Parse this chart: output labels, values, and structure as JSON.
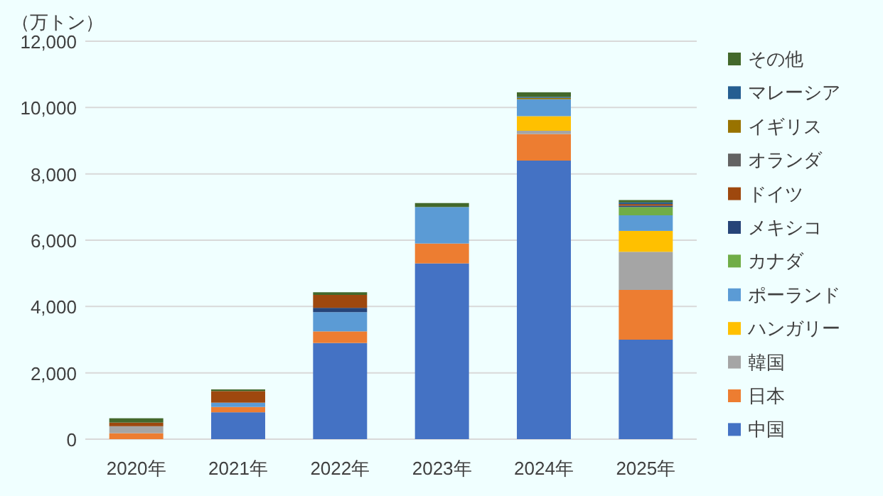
{
  "chart_data": {
    "type": "bar",
    "stacked": true,
    "ylabel": "（万トン）",
    "categories": [
      "2020年",
      "2021年",
      "2022年",
      "2023年",
      "2024年",
      "2025年"
    ],
    "series": [
      {
        "name": "中国",
        "color": "#4472c4",
        "values": [
          0,
          810,
          2900,
          5300,
          8400,
          3000
        ]
      },
      {
        "name": "日本",
        "color": "#ed7d31",
        "values": [
          180,
          160,
          350,
          600,
          800,
          1500
        ]
      },
      {
        "name": "韓国",
        "color": "#a5a5a5",
        "values": [
          210,
          0,
          0,
          0,
          100,
          1150
        ]
      },
      {
        "name": "ハンガリー",
        "color": "#ffc000",
        "values": [
          0,
          0,
          0,
          0,
          440,
          630
        ]
      },
      {
        "name": "ポーランド",
        "color": "#5b9bd5",
        "values": [
          0,
          130,
          580,
          1100,
          510,
          470
        ]
      },
      {
        "name": "カナダ",
        "color": "#70ad47",
        "values": [
          0,
          0,
          0,
          0,
          0,
          250
        ]
      },
      {
        "name": "メキシコ",
        "color": "#264478",
        "values": [
          0,
          0,
          130,
          0,
          0,
          40
        ]
      },
      {
        "name": "ドイツ",
        "color": "#9e480e",
        "values": [
          110,
          350,
          390,
          0,
          0,
          50
        ]
      },
      {
        "name": "オランダ",
        "color": "#636363",
        "values": [
          0,
          0,
          0,
          0,
          0,
          0
        ]
      },
      {
        "name": "イギリス",
        "color": "#997300",
        "values": [
          0,
          0,
          0,
          0,
          40,
          0
        ]
      },
      {
        "name": "マレーシア",
        "color": "#255e91",
        "values": [
          0,
          0,
          0,
          0,
          30,
          50
        ]
      },
      {
        "name": "その他",
        "color": "#43682b",
        "values": [
          130,
          50,
          80,
          120,
          140,
          70
        ]
      }
    ],
    "ylim": [
      0,
      12000
    ],
    "yticks": [
      {
        "value": 0,
        "label": "0"
      },
      {
        "value": 2000,
        "label": "2,000"
      },
      {
        "value": 4000,
        "label": "4,000"
      },
      {
        "value": 6000,
        "label": "6,000"
      },
      {
        "value": 8000,
        "label": "8,000"
      },
      {
        "value": 10000,
        "label": "10,000"
      },
      {
        "value": 12000,
        "label": "12,000"
      }
    ],
    "grid": "y",
    "legend": "right"
  }
}
